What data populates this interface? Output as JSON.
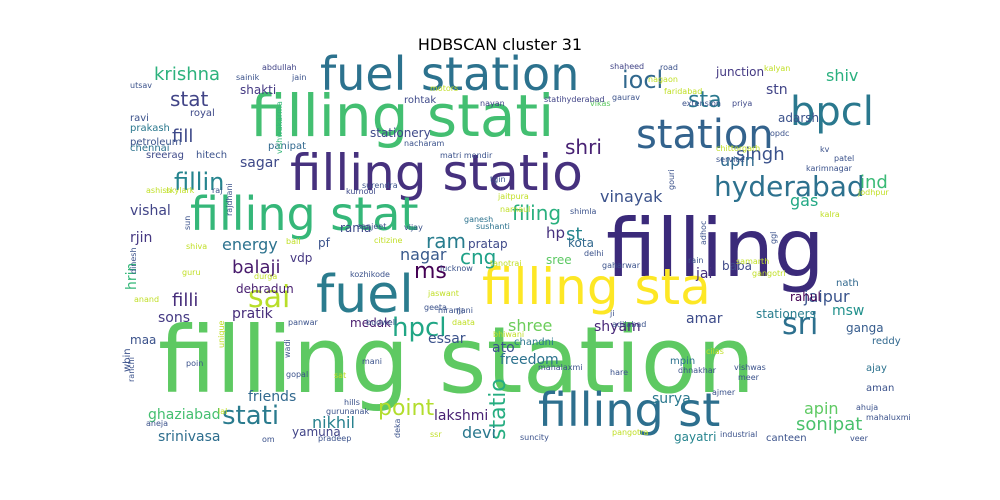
{
  "chart_data": {
    "type": "wordcloud",
    "title": "HDBSCAN cluster 31",
    "colormap": "viridis",
    "background": "#ffffff",
    "words": [
      {
        "text": "filling station",
        "weight": 1.0,
        "color": "#5ec962"
      },
      {
        "text": "filling",
        "weight": 0.86,
        "color": "#3b2a7a"
      },
      {
        "text": "filling stati",
        "weight": 0.68,
        "color": "#43bf71"
      },
      {
        "text": "filling statio",
        "weight": 0.68,
        "color": "#46317e"
      },
      {
        "text": "filling sta",
        "weight": 0.68,
        "color": "#fde725"
      },
      {
        "text": "fuel station",
        "weight": 0.62,
        "color": "#2c728e"
      },
      {
        "text": "filling st",
        "weight": 0.62,
        "color": "#2d6f8e"
      },
      {
        "text": "fuel",
        "weight": 0.62,
        "color": "#2b7c8e"
      },
      {
        "text": "filling stat",
        "weight": 0.6,
        "color": "#35b779"
      },
      {
        "text": "station",
        "weight": 0.4,
        "color": "#33638d"
      },
      {
        "text": "bpcl",
        "weight": 0.4,
        "color": "#2a788e"
      },
      {
        "text": "hyderabad",
        "weight": 0.3,
        "color": "#2d718e"
      },
      {
        "text": "sai",
        "weight": 0.3,
        "color": "#b8de29"
      },
      {
        "text": "hpcl",
        "weight": 0.3,
        "color": "#21a685"
      },
      {
        "text": "sri",
        "weight": 0.3,
        "color": "#2d708e"
      },
      {
        "text": "stati",
        "weight": 0.28,
        "color": "#2a7b8e"
      },
      {
        "text": "iocl",
        "weight": 0.25,
        "color": "#31688e"
      },
      {
        "text": "sta",
        "weight": 0.25,
        "color": "#2a788e"
      },
      {
        "text": "fillin",
        "weight": 0.22,
        "color": "#25848e"
      },
      {
        "text": "point",
        "weight": 0.22,
        "color": "#b2dd2d"
      },
      {
        "text": "statio",
        "weight": 0.22,
        "color": "#26ad81"
      },
      {
        "text": "shri",
        "weight": 0.22,
        "color": "#482173"
      },
      {
        "text": "stat",
        "weight": 0.22,
        "color": "#414487"
      },
      {
        "text": "singh",
        "weight": 0.2,
        "color": "#3b528b"
      },
      {
        "text": "fill",
        "weight": 0.2,
        "color": "#3e4989"
      },
      {
        "text": "filli",
        "weight": 0.2,
        "color": "#472d7b"
      },
      {
        "text": "ms",
        "weight": 0.2,
        "color": "#440154"
      },
      {
        "text": "cng",
        "weight": 0.2,
        "color": "#1fa188"
      },
      {
        "text": "ram",
        "weight": 0.2,
        "color": "#287d8e"
      },
      {
        "text": "filing",
        "weight": 0.2,
        "color": "#2ab07f"
      },
      {
        "text": "krishna",
        "weight": 0.18,
        "color": "#2db27d"
      },
      {
        "text": "energy",
        "weight": 0.18,
        "color": "#2c728e"
      },
      {
        "text": "ind",
        "weight": 0.18,
        "color": "#3aba76"
      },
      {
        "text": "st",
        "weight": 0.18,
        "color": "#24868e"
      },
      {
        "text": "nikhil",
        "weight": 0.18,
        "color": "#26818e"
      },
      {
        "text": "sonipat",
        "weight": 0.18,
        "color": "#4ac16d"
      },
      {
        "text": "jaipur",
        "weight": 0.18,
        "color": "#3a548c"
      },
      {
        "text": "shree",
        "weight": 0.16,
        "color": "#6ccd5a"
      },
      {
        "text": "balaji",
        "weight": 0.16,
        "color": "#481b6d"
      },
      {
        "text": "nagar",
        "weight": 0.16,
        "color": "#38598c"
      },
      {
        "text": "vinayak",
        "weight": 0.16,
        "color": "#3b528b"
      },
      {
        "text": "devi",
        "weight": 0.16,
        "color": "#2a788e"
      },
      {
        "text": "apin",
        "weight": 0.16,
        "color": "#5ec962"
      },
      {
        "text": "shiv",
        "weight": 0.15,
        "color": "#2ab07f"
      },
      {
        "text": "stn",
        "weight": 0.15,
        "color": "#414487"
      },
      {
        "text": "upin",
        "weight": 0.15,
        "color": "#306a8e"
      },
      {
        "text": "gas",
        "weight": 0.15,
        "color": "#22a884"
      },
      {
        "text": "hp",
        "weight": 0.15,
        "color": "#46327e"
      },
      {
        "text": "sons",
        "weight": 0.15,
        "color": "#443983"
      },
      {
        "text": "msw",
        "weight": 0.15,
        "color": "#21918c"
      },
      {
        "text": "ato",
        "weight": 0.15,
        "color": "#3b528b"
      },
      {
        "text": "rjin",
        "weight": 0.14,
        "color": "#453781"
      },
      {
        "text": "hrin",
        "weight": 0.14,
        "color": "#35b779"
      },
      {
        "text": "pratik",
        "weight": 0.13,
        "color": "#472d7b"
      },
      {
        "text": "sagar",
        "weight": 0.13,
        "color": "#3e4989"
      },
      {
        "text": "vishal",
        "weight": 0.13,
        "color": "#414487"
      },
      {
        "text": "shyam",
        "weight": 0.13,
        "color": "#482878"
      },
      {
        "text": "amar",
        "weight": 0.13,
        "color": "#3e4c8a"
      },
      {
        "text": "jai",
        "weight": 0.14,
        "color": "#46317e"
      },
      {
        "text": "friends",
        "weight": 0.13,
        "color": "#31688e"
      },
      {
        "text": "ghaziabad",
        "weight": 0.13,
        "color": "#44bf70"
      },
      {
        "text": "srinivasa",
        "weight": 0.13,
        "color": "#2e6e8e"
      },
      {
        "text": "essar",
        "weight": 0.13,
        "color": "#3b528b"
      },
      {
        "text": "freedom",
        "weight": 0.13,
        "color": "#2c728e"
      },
      {
        "text": "lakshmi",
        "weight": 0.13,
        "color": "#482173"
      },
      {
        "text": "surya",
        "weight": 0.13,
        "color": "#2a788e"
      },
      {
        "text": "rahul",
        "weight": 0.12,
        "color": "#440154"
      },
      {
        "text": "ganga",
        "weight": 0.12,
        "color": "#365c8d"
      },
      {
        "text": "adarsh",
        "weight": 0.12,
        "color": "#3b528b"
      },
      {
        "text": "maa",
        "weight": 0.12,
        "color": "#3b528b"
      },
      {
        "text": "vdp",
        "weight": 0.12,
        "color": "#453781"
      },
      {
        "text": "dehradun",
        "weight": 0.12,
        "color": "#481f70"
      },
      {
        "text": "shakti",
        "weight": 0.12,
        "color": "#443983"
      },
      {
        "text": "rama",
        "weight": 0.12,
        "color": "#3e4a89"
      },
      {
        "text": "pf",
        "weight": 0.12,
        "color": "#3b528b"
      },
      {
        "text": "medak",
        "weight": 0.12,
        "color": "#481b6d"
      },
      {
        "text": "pratap",
        "weight": 0.11,
        "color": "#3e4989"
      },
      {
        "text": "kota",
        "weight": 0.11,
        "color": "#31688e"
      },
      {
        "text": "junction",
        "weight": 0.11,
        "color": "#443983"
      },
      {
        "text": "sree",
        "weight": 0.12,
        "color": "#5cc863"
      },
      {
        "text": "yamuna",
        "weight": 0.12,
        "color": "#414487"
      },
      {
        "text": "baba",
        "weight": 0.11,
        "color": "#3e4989"
      },
      {
        "text": "nath",
        "weight": 0.11,
        "color": "#31688e"
      },
      {
        "text": "stationers",
        "weight": 0.11,
        "color": "#287d8e"
      },
      {
        "text": "reddy",
        "weight": 0.11,
        "color": "#31688e"
      },
      {
        "text": "ajay",
        "weight": 0.11,
        "color": "#2c728e"
      },
      {
        "text": "aman",
        "weight": 0.11,
        "color": "#3b528b"
      },
      {
        "text": "canteen",
        "weight": 0.11,
        "color": "#3b528b"
      },
      {
        "text": "gayatri",
        "weight": 0.11,
        "color": "#25848e"
      },
      {
        "text": "mpin",
        "weight": 0.11,
        "color": "#2c728e"
      },
      {
        "text": "chandni",
        "weight": 0.11,
        "color": "#2a788e"
      },
      {
        "text": "stationery",
        "weight": 0.11,
        "color": "#3e4989"
      },
      {
        "text": "royal",
        "weight": 0.1,
        "color": "#3e4989"
      },
      {
        "text": "ravi",
        "weight": 0.1,
        "color": "#3b528b"
      },
      {
        "text": "prakash",
        "weight": 0.1,
        "color": "#2a788e"
      },
      {
        "text": "petroleum",
        "weight": 0.1,
        "color": "#3b528b"
      },
      {
        "text": "chennai",
        "weight": 0.09,
        "color": "#2c728e"
      },
      {
        "text": "sreerag",
        "weight": 0.09,
        "color": "#3e4989"
      },
      {
        "text": "hitech",
        "weight": 0.09,
        "color": "#3b528b"
      },
      {
        "text": "panipat",
        "weight": 0.1,
        "color": "#31688e"
      },
      {
        "text": "abdullah",
        "weight": 0.09,
        "color": "#414487"
      },
      {
        "text": "sainik",
        "weight": 0.09,
        "color": "#3b528b"
      },
      {
        "text": "jain",
        "weight": 0.09,
        "color": "#3b528b"
      },
      {
        "text": "utsav",
        "weight": 0.09,
        "color": "#3b528b"
      },
      {
        "text": "rohtak",
        "weight": 0.09,
        "color": "#3e4989"
      },
      {
        "text": "nacharam",
        "weight": 0.09,
        "color": "#3b528b"
      },
      {
        "text": "matri mondir",
        "weight": 0.09,
        "color": "#3b528b"
      },
      {
        "text": "kurnool",
        "weight": 0.09,
        "color": "#3e4989"
      },
      {
        "text": "sanjeet",
        "weight": 0.09,
        "color": "#3b528b"
      },
      {
        "text": "vijay",
        "weight": 0.09,
        "color": "#3b528b"
      },
      {
        "text": "tgin",
        "weight": 0.09,
        "color": "#3b528b"
      },
      {
        "text": "shimla",
        "weight": 0.09,
        "color": "#3b528b"
      },
      {
        "text": "jaitpura",
        "weight": 0.09,
        "color": "#c0df25"
      },
      {
        "text": "narnaul",
        "weight": 0.09,
        "color": "#c0df25"
      },
      {
        "text": "ganesh",
        "weight": 0.09,
        "color": "#2c728e"
      },
      {
        "text": "sushanti",
        "weight": 0.09,
        "color": "#2c728e"
      },
      {
        "text": "shaheed",
        "weight": 0.09,
        "color": "#414487"
      },
      {
        "text": "road",
        "weight": 0.09,
        "color": "#3b528b"
      },
      {
        "text": "nagaon",
        "weight": 0.09,
        "color": "#c0df25"
      },
      {
        "text": "faridabad",
        "weight": 0.09,
        "color": "#c0df25"
      },
      {
        "text": "kalyan",
        "weight": 0.09,
        "color": "#c0df25"
      },
      {
        "text": "extension",
        "weight": 0.09,
        "color": "#3b528b"
      },
      {
        "text": "priya",
        "weight": 0.09,
        "color": "#3e4989"
      },
      {
        "text": "vikas",
        "weight": 0.09,
        "color": "#5ec962"
      },
      {
        "text": "statihyderabad",
        "weight": 0.09,
        "color": "#414487"
      },
      {
        "text": "nayan",
        "weight": 0.09,
        "color": "#414487"
      },
      {
        "text": "motors",
        "weight": 0.09,
        "color": "#c0df25"
      },
      {
        "text": "opdc",
        "weight": 0.09,
        "color": "#3b528b"
      },
      {
        "text": "kv",
        "weight": 0.09,
        "color": "#3b528b"
      },
      {
        "text": "chittorgarh",
        "weight": 0.09,
        "color": "#c0df25"
      },
      {
        "text": "service",
        "weight": 0.09,
        "color": "#3b528b"
      },
      {
        "text": "patel",
        "weight": 0.09,
        "color": "#3b528b"
      },
      {
        "text": "karimnagar",
        "weight": 0.09,
        "color": "#3b528b"
      },
      {
        "text": "jodhpur",
        "weight": 0.09,
        "color": "#c0df25"
      },
      {
        "text": "kalra",
        "weight": 0.09,
        "color": "#c0df25"
      },
      {
        "text": "gouri",
        "weight": 0.09,
        "color": "#3b528b"
      },
      {
        "text": "vishwakarma",
        "weight": 0.09,
        "color": "#35b779"
      },
      {
        "text": "ashish",
        "weight": 0.09,
        "color": "#c0df25"
      },
      {
        "text": "skylark",
        "weight": 0.09,
        "color": "#c0df25"
      },
      {
        "text": "raj",
        "weight": 0.09,
        "color": "#3b528b"
      },
      {
        "text": "surendra",
        "weight": 0.09,
        "color": "#3b528b"
      },
      {
        "text": "rajdhani",
        "weight": 0.09,
        "color": "#3b528b"
      },
      {
        "text": "sun",
        "weight": 0.09,
        "color": "#3b528b"
      },
      {
        "text": "shiva",
        "weight": 0.09,
        "color": "#c0df25"
      },
      {
        "text": "dinesh",
        "weight": 0.09,
        "color": "#3b528b"
      },
      {
        "text": "bali",
        "weight": 0.09,
        "color": "#c0df25"
      },
      {
        "text": "citizine",
        "weight": 0.09,
        "color": "#c0df25"
      },
      {
        "text": "guru",
        "weight": 0.09,
        "color": "#c0df25"
      },
      {
        "text": "durga",
        "weight": 0.09,
        "color": "#c0df25"
      },
      {
        "text": "kozhikode",
        "weight": 0.09,
        "color": "#3b528b"
      },
      {
        "text": "lucknow",
        "weight": 0.09,
        "color": "#3b528b"
      },
      {
        "text": "tanotrai",
        "weight": 0.09,
        "color": "#c0df25"
      },
      {
        "text": "delhi",
        "weight": 0.09,
        "color": "#3b528b"
      },
      {
        "text": "gaharwar",
        "weight": 0.09,
        "color": "#3b528b"
      },
      {
        "text": "rain",
        "weight": 0.09,
        "color": "#3b528b"
      },
      {
        "text": "samarth",
        "weight": 0.09,
        "color": "#c0df25"
      },
      {
        "text": "gangotri",
        "weight": 0.09,
        "color": "#c0df25"
      },
      {
        "text": "adhoc",
        "weight": 0.09,
        "color": "#3b528b"
      },
      {
        "text": "ggl",
        "weight": 0.09,
        "color": "#3b528b"
      },
      {
        "text": "anand",
        "weight": 0.09,
        "color": "#c0df25"
      },
      {
        "text": "jaswant",
        "weight": 0.09,
        "color": "#c0df25"
      },
      {
        "text": "geeta",
        "weight": 0.09,
        "color": "#3b528b"
      },
      {
        "text": "panwar",
        "weight": 0.09,
        "color": "#3b528b"
      },
      {
        "text": "budwell",
        "weight": 0.09,
        "color": "#3b528b"
      },
      {
        "text": "daata",
        "weight": 0.09,
        "color": "#c0df25"
      },
      {
        "text": "niranjani",
        "weight": 0.09,
        "color": "#3b528b"
      },
      {
        "text": "ji",
        "weight": 0.09,
        "color": "#3b528b"
      },
      {
        "text": "adilabad",
        "weight": 0.09,
        "color": "#3b528b"
      },
      {
        "text": "unique",
        "weight": 0.09,
        "color": "#c0df25"
      },
      {
        "text": "mani",
        "weight": 0.09,
        "color": "#3b528b"
      },
      {
        "text": "mahalaxmi",
        "weight": 0.09,
        "color": "#3b528b"
      },
      {
        "text": "hare",
        "weight": 0.09,
        "color": "#3b528b"
      },
      {
        "text": "dhnakhar",
        "weight": 0.09,
        "color": "#3b528b"
      },
      {
        "text": "cilas",
        "weight": 0.09,
        "color": "#c0df25"
      },
      {
        "text": "vishwas",
        "weight": 0.09,
        "color": "#3b528b"
      },
      {
        "text": "meer",
        "weight": 0.09,
        "color": "#3b528b"
      },
      {
        "text": "poin",
        "weight": 0.09,
        "color": "#3b528b"
      },
      {
        "text": "wadi",
        "weight": 0.09,
        "color": "#3b528b"
      },
      {
        "text": "gopal",
        "weight": 0.09,
        "color": "#3b528b"
      },
      {
        "text": "sat",
        "weight": 0.09,
        "color": "#c0df25"
      },
      {
        "text": "ranchi",
        "weight": 0.09,
        "color": "#3b528b"
      },
      {
        "text": "hills",
        "weight": 0.09,
        "color": "#3b528b"
      },
      {
        "text": "deka",
        "weight": 0.09,
        "color": "#3b528b"
      },
      {
        "text": "ajmer",
        "weight": 0.09,
        "color": "#3b528b"
      },
      {
        "text": "lal",
        "weight": 0.09,
        "color": "#c0df25"
      },
      {
        "text": "gurunanak",
        "weight": 0.09,
        "color": "#3b528b"
      },
      {
        "text": "ahuja",
        "weight": 0.09,
        "color": "#3b528b"
      },
      {
        "text": "mahaluxmi",
        "weight": 0.09,
        "color": "#3b528b"
      },
      {
        "text": "aneja",
        "weight": 0.09,
        "color": "#3b528b"
      },
      {
        "text": "om",
        "weight": 0.09,
        "color": "#3b528b"
      },
      {
        "text": "pradeep",
        "weight": 0.09,
        "color": "#3b528b"
      },
      {
        "text": "ssr",
        "weight": 0.09,
        "color": "#c0df25"
      },
      {
        "text": "suncity",
        "weight": 0.09,
        "color": "#3b528b"
      },
      {
        "text": "pangotra",
        "weight": 0.09,
        "color": "#c0df25"
      },
      {
        "text": "industrial",
        "weight": 0.09,
        "color": "#3b528b"
      },
      {
        "text": "veer",
        "weight": 0.09,
        "color": "#3b528b"
      },
      {
        "text": "wbin",
        "weight": 0.09,
        "color": "#3b528b"
      },
      {
        "text": "gaurav",
        "weight": 0.09,
        "color": "#3b528b"
      },
      {
        "text": "fil",
        "weight": 0.09,
        "color": "#3b528b"
      },
      {
        "text": "bhiwani",
        "weight": 0.09,
        "color": "#c0df25"
      }
    ]
  }
}
